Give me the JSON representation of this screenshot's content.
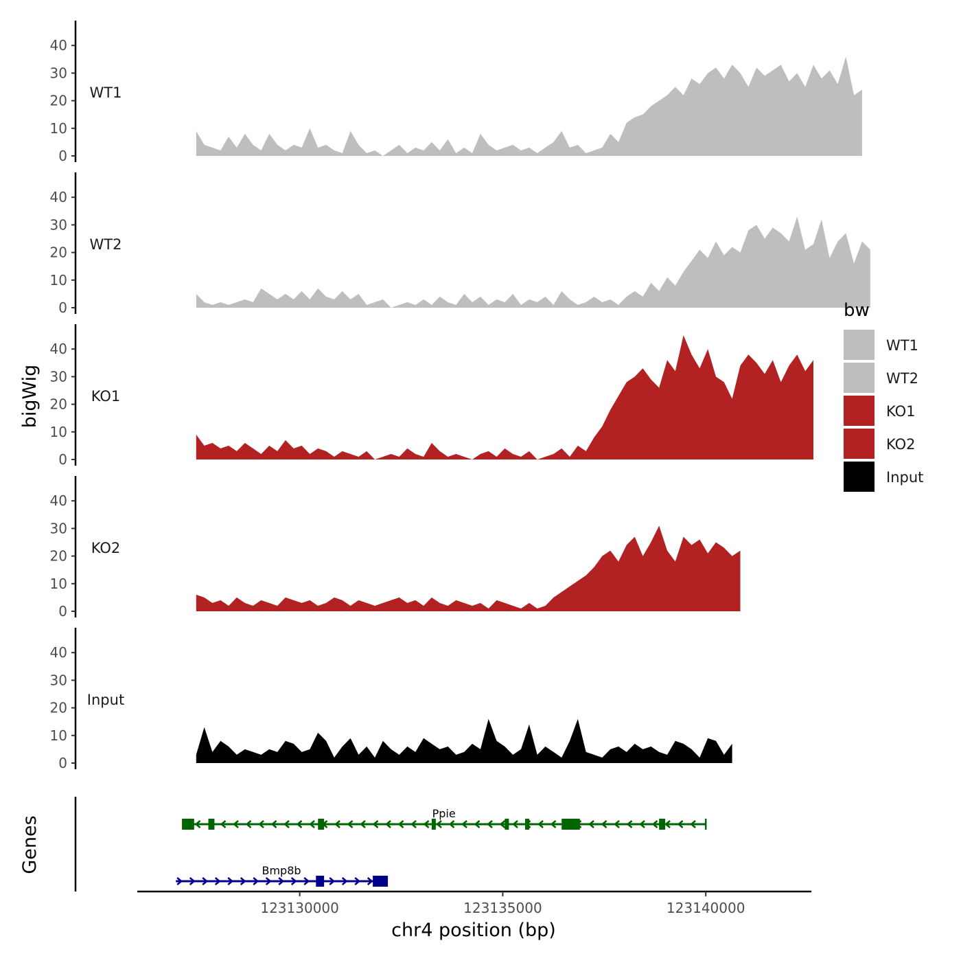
{
  "chart_data": {
    "type": "area",
    "title": "",
    "xlabel": "chr4 position (bp)",
    "ylabel_tracks": "bigWig",
    "ylabel_genes": "Genes",
    "xlim": [
      123126000,
      123142600
    ],
    "ylim": [
      0,
      50
    ],
    "x_ticks": [
      123130000,
      123135000,
      123140000
    ],
    "x_tick_labels": [
      "123130000",
      "123135000",
      "123140000"
    ],
    "y_ticks": [
      0,
      10,
      20,
      30,
      40
    ],
    "y_tick_labels": [
      "0",
      "10",
      "20",
      "30",
      "40"
    ],
    "legend": {
      "title": "bw",
      "position": "right",
      "entries": [
        {
          "label": "WT1",
          "color": "#bebebe"
        },
        {
          "label": "WT2",
          "color": "#bebebe"
        },
        {
          "label": "KO1",
          "color": "#b22222"
        },
        {
          "label": "KO2",
          "color": "#b22222"
        },
        {
          "label": "Input",
          "color": "#000000"
        }
      ]
    },
    "x_start": 123127450,
    "x_step": 200,
    "series": [
      {
        "name": "WT1",
        "color": "#bebebe",
        "values": [
          9,
          4,
          3,
          2,
          7,
          3,
          8,
          4,
          2,
          8,
          4,
          2,
          4,
          3,
          10,
          3,
          4,
          2,
          1,
          9,
          4,
          1,
          2,
          0,
          2,
          4,
          1,
          3,
          2,
          5,
          2,
          6,
          1,
          3,
          1,
          8,
          4,
          2,
          3,
          4,
          2,
          3,
          1,
          3,
          5,
          9,
          3,
          4,
          1,
          2,
          3,
          8,
          5,
          12,
          14,
          15,
          18,
          20,
          22,
          25,
          22,
          28,
          26,
          30,
          32,
          28,
          33,
          30,
          25,
          32,
          29,
          31,
          33,
          27,
          30,
          25,
          33,
          28,
          31,
          26,
          36,
          22,
          24
        ]
      },
      {
        "name": "WT2",
        "color": "#bebebe",
        "values": [
          5,
          2,
          1,
          2,
          1,
          2,
          3,
          2,
          7,
          5,
          3,
          5,
          3,
          6,
          3,
          7,
          4,
          3,
          6,
          3,
          5,
          1,
          2,
          3,
          0,
          1,
          2,
          1,
          3,
          1,
          4,
          2,
          1,
          5,
          2,
          4,
          1,
          3,
          2,
          5,
          1,
          3,
          2,
          4,
          1,
          6,
          3,
          1,
          2,
          4,
          2,
          3,
          1,
          4,
          6,
          4,
          9,
          6,
          11,
          8,
          13,
          17,
          21,
          18,
          24,
          19,
          22,
          20,
          28,
          30,
          25,
          29,
          27,
          24,
          33,
          21,
          23,
          32,
          18,
          24,
          27,
          16,
          24,
          21
        ]
      },
      {
        "name": "KO1",
        "color": "#b22222",
        "values": [
          9,
          5,
          6,
          4,
          5,
          3,
          6,
          4,
          2,
          5,
          3,
          7,
          4,
          5,
          2,
          4,
          3,
          1,
          3,
          2,
          1,
          3,
          0,
          1,
          2,
          1,
          4,
          2,
          1,
          6,
          3,
          1,
          2,
          1,
          0,
          2,
          3,
          1,
          4,
          2,
          1,
          3,
          0,
          1,
          2,
          4,
          1,
          5,
          3,
          8,
          12,
          18,
          23,
          28,
          30,
          33,
          29,
          26,
          36,
          32,
          45,
          38,
          33,
          40,
          30,
          28,
          22,
          34,
          38,
          35,
          31,
          36,
          28,
          34,
          38,
          32,
          36
        ]
      },
      {
        "name": "KO2",
        "color": "#b22222",
        "values": [
          6,
          5,
          3,
          4,
          2,
          5,
          3,
          2,
          4,
          3,
          2,
          5,
          4,
          3,
          4,
          2,
          3,
          5,
          4,
          2,
          4,
          3,
          2,
          3,
          4,
          5,
          3,
          4,
          2,
          5,
          3,
          2,
          4,
          3,
          2,
          3,
          1,
          4,
          3,
          2,
          1,
          3,
          1,
          2,
          5,
          7,
          9,
          11,
          13,
          16,
          20,
          22,
          18,
          24,
          27,
          20,
          25,
          31,
          22,
          18,
          27,
          24,
          26,
          21,
          25,
          23,
          20,
          22
        ]
      },
      {
        "name": "Input",
        "color": "#000000",
        "values": [
          3,
          13,
          4,
          8,
          6,
          3,
          5,
          4,
          3,
          5,
          4,
          8,
          7,
          4,
          5,
          11,
          8,
          2,
          6,
          9,
          3,
          6,
          2,
          8,
          5,
          3,
          6,
          4,
          9,
          7,
          5,
          6,
          3,
          4,
          7,
          5,
          16,
          8,
          6,
          3,
          5,
          14,
          3,
          6,
          4,
          2,
          8,
          16,
          4,
          3,
          2,
          5,
          6,
          4,
          7,
          5,
          6,
          4,
          3,
          8,
          7,
          5,
          2,
          9,
          8,
          3,
          7
        ]
      }
    ],
    "genes": [
      {
        "name": "Ppie",
        "strand": "-",
        "color": "#006400",
        "row": 1,
        "start": 123127100,
        "end": 123140000,
        "exons": [
          [
            123127100,
            123127400
          ],
          [
            123127750,
            123127900
          ],
          [
            123130450,
            123130600
          ],
          [
            123133250,
            123133350
          ],
          [
            123135050,
            123135120
          ],
          [
            123135550,
            123135620
          ],
          [
            123136450,
            123136900
          ],
          [
            123138850,
            123139000
          ]
        ]
      },
      {
        "name": "Bmp8b",
        "strand": "+",
        "color": "#00008b",
        "row": 2,
        "start": 123126950,
        "end": 123132150,
        "exons": [
          [
            123130400,
            123130600
          ],
          [
            123131800,
            123132150
          ]
        ]
      }
    ]
  }
}
